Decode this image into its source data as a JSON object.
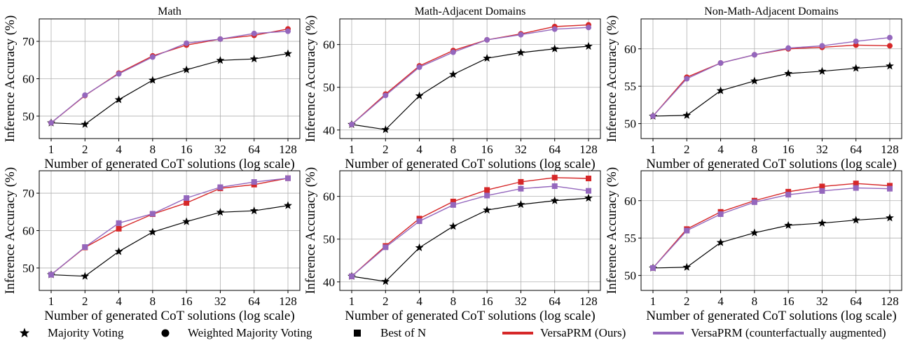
{
  "legend": {
    "markers": [
      {
        "label": "Majority Voting",
        "icon": "star-icon"
      },
      {
        "label": "Weighted Majority Voting",
        "icon": "circle-icon"
      },
      {
        "label": "Best of N",
        "icon": "square-icon"
      }
    ],
    "lines": [
      {
        "label": "VersaPRM (Ours)",
        "color": "#d62728"
      },
      {
        "label": "VersaPRM (counterfactually augmented)",
        "color": "#9467bd"
      }
    ]
  },
  "chart_data": [
    {
      "type": "line",
      "title": "Math",
      "xlabel": "Number of generated CoT solutions (log scale)",
      "ylabel": "Inference Accuracy (%)",
      "x_scale": "log2",
      "categories": [
        "1",
        "2",
        "4",
        "8",
        "16",
        "32",
        "64",
        "128"
      ],
      "ylim": [
        44,
        76
      ],
      "yticks": [
        50,
        60,
        70
      ],
      "grid": true,
      "marker": "circle",
      "series": [
        {
          "name": "Majority Voting",
          "color": "#000000",
          "marker": "star",
          "values": [
            48.2,
            47.8,
            54.4,
            59.6,
            62.4,
            64.9,
            65.3,
            66.7
          ]
        },
        {
          "name": "VersaPRM (Ours)",
          "color": "#d62728",
          "values": [
            48.2,
            55.5,
            61.5,
            66.1,
            69.0,
            70.6,
            71.6,
            73.3
          ]
        },
        {
          "name": "VersaPRM (counterfactually augmented)",
          "color": "#9467bd",
          "values": [
            48.2,
            55.6,
            61.3,
            65.8,
            69.5,
            70.6,
            72.1,
            72.7
          ]
        }
      ]
    },
    {
      "type": "line",
      "title": "Math-Adjacent Domains",
      "xlabel": "Number of generated CoT solutions (log scale)",
      "ylabel": "Inference Accuracy (%)",
      "x_scale": "log2",
      "categories": [
        "1",
        "2",
        "4",
        "8",
        "16",
        "32",
        "64",
        "128"
      ],
      "ylim": [
        38,
        66
      ],
      "yticks": [
        40,
        50,
        60
      ],
      "grid": true,
      "marker": "circle",
      "series": [
        {
          "name": "Majority Voting",
          "color": "#000000",
          "marker": "star",
          "values": [
            41.3,
            40.1,
            48.0,
            53.0,
            56.8,
            58.1,
            59.0,
            59.6
          ]
        },
        {
          "name": "VersaPRM (Ours)",
          "color": "#d62728",
          "values": [
            41.3,
            48.4,
            55.0,
            58.6,
            61.1,
            62.5,
            64.2,
            64.6
          ]
        },
        {
          "name": "VersaPRM (counterfactually augmented)",
          "color": "#9467bd",
          "values": [
            41.3,
            48.1,
            54.7,
            58.2,
            61.1,
            62.3,
            63.6,
            64.0
          ]
        }
      ]
    },
    {
      "type": "line",
      "title": "Non-Math-Adjacent Domains",
      "xlabel": "Number of generated CoT solutions (log scale)",
      "ylabel": "Inference Accuracy (%)",
      "x_scale": "log2",
      "categories": [
        "1",
        "2",
        "4",
        "8",
        "16",
        "32",
        "64",
        "128"
      ],
      "ylim": [
        48,
        64
      ],
      "yticks": [
        50,
        55,
        60
      ],
      "grid": true,
      "marker": "circle",
      "series": [
        {
          "name": "Majority Voting",
          "color": "#000000",
          "marker": "star",
          "values": [
            51.0,
            51.1,
            54.4,
            55.7,
            56.7,
            57.0,
            57.4,
            57.7
          ]
        },
        {
          "name": "VersaPRM (Ours)",
          "color": "#d62728",
          "values": [
            51.0,
            56.2,
            58.1,
            59.2,
            60.0,
            60.2,
            60.5,
            60.4
          ]
        },
        {
          "name": "VersaPRM (counterfactually augmented)",
          "color": "#9467bd",
          "values": [
            51.0,
            56.0,
            58.1,
            59.2,
            60.1,
            60.4,
            61.0,
            61.5
          ]
        }
      ]
    },
    {
      "type": "line",
      "title": "",
      "xlabel": "Number of generated CoT solutions (log scale)",
      "ylabel": "Inference Accuracy (%)",
      "x_scale": "log2",
      "categories": [
        "1",
        "2",
        "4",
        "8",
        "16",
        "32",
        "64",
        "128"
      ],
      "ylim": [
        44,
        76
      ],
      "yticks": [
        50,
        60,
        70
      ],
      "grid": true,
      "marker": "square",
      "series": [
        {
          "name": "Majority Voting",
          "color": "#000000",
          "marker": "star",
          "values": [
            48.2,
            47.8,
            54.4,
            59.6,
            62.4,
            64.9,
            65.3,
            66.7
          ]
        },
        {
          "name": "VersaPRM (Ours)",
          "color": "#d62728",
          "values": [
            48.2,
            55.5,
            60.5,
            64.4,
            67.4,
            71.3,
            72.3,
            74.0
          ]
        },
        {
          "name": "VersaPRM (counterfactually augmented)",
          "color": "#9467bd",
          "values": [
            48.2,
            55.6,
            62.0,
            64.5,
            68.7,
            71.6,
            73.0,
            74.0
          ]
        }
      ]
    },
    {
      "type": "line",
      "title": "",
      "xlabel": "Number of generated CoT solutions (log scale)",
      "ylabel": "Inference Accuracy (%)",
      "x_scale": "log2",
      "categories": [
        "1",
        "2",
        "4",
        "8",
        "16",
        "32",
        "64",
        "128"
      ],
      "ylim": [
        38,
        66
      ],
      "yticks": [
        40,
        50,
        60
      ],
      "grid": true,
      "marker": "square",
      "series": [
        {
          "name": "Majority Voting",
          "color": "#000000",
          "marker": "star",
          "values": [
            41.3,
            40.1,
            48.0,
            53.0,
            56.8,
            58.1,
            59.0,
            59.6
          ]
        },
        {
          "name": "VersaPRM (Ours)",
          "color": "#d62728",
          "values": [
            41.3,
            48.4,
            54.8,
            58.8,
            61.5,
            63.4,
            64.4,
            64.2
          ]
        },
        {
          "name": "VersaPRM (counterfactually augmented)",
          "color": "#9467bd",
          "values": [
            41.3,
            48.1,
            54.2,
            58.0,
            60.2,
            61.8,
            62.4,
            61.3
          ]
        }
      ]
    },
    {
      "type": "line",
      "title": "",
      "xlabel": "Number of generated CoT solutions (log scale)",
      "ylabel": "Inference Accuracy (%)",
      "x_scale": "log2",
      "categories": [
        "1",
        "2",
        "4",
        "8",
        "16",
        "32",
        "64",
        "128"
      ],
      "ylim": [
        48,
        64
      ],
      "yticks": [
        50,
        55,
        60
      ],
      "grid": true,
      "marker": "square",
      "series": [
        {
          "name": "Majority Voting",
          "color": "#000000",
          "marker": "star",
          "values": [
            51.0,
            51.1,
            54.4,
            55.7,
            56.7,
            57.0,
            57.4,
            57.7
          ]
        },
        {
          "name": "VersaPRM (Ours)",
          "color": "#d62728",
          "values": [
            51.0,
            56.2,
            58.5,
            60.0,
            61.2,
            61.9,
            62.3,
            62.0
          ]
        },
        {
          "name": "VersaPRM (counterfactually augmented)",
          "color": "#9467bd",
          "values": [
            51.0,
            56.0,
            58.2,
            59.8,
            60.8,
            61.3,
            61.7,
            61.6
          ]
        }
      ]
    }
  ]
}
